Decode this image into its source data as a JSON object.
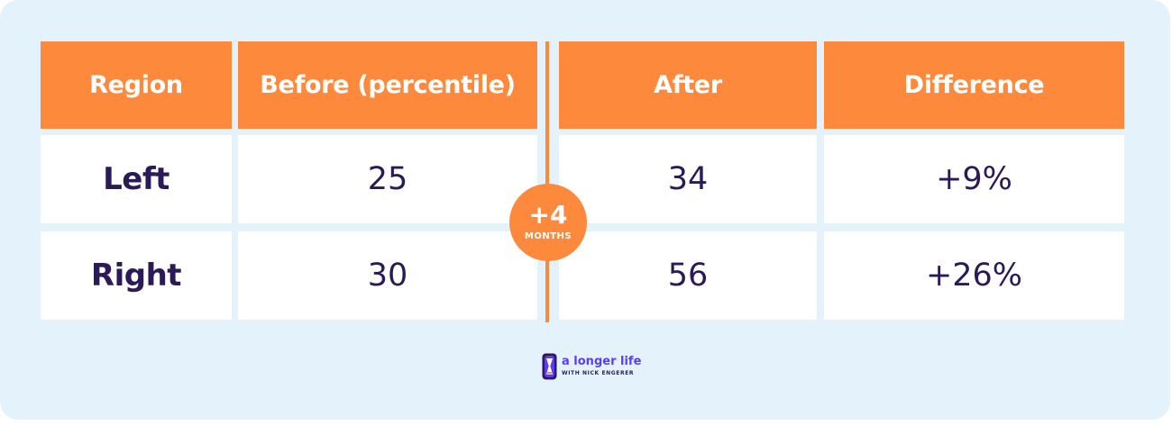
{
  "table": {
    "headers": [
      "Region",
      "Before (percentile)",
      "After",
      "Difference"
    ],
    "rows": [
      {
        "region": "Left",
        "before": "25",
        "after": "34",
        "difference": "+9%"
      },
      {
        "region": "Right",
        "before": "30",
        "after": "56",
        "difference": "+26%"
      }
    ]
  },
  "badge": {
    "value": "+4",
    "unit": "MONTHS"
  },
  "logo": {
    "title": "a longer life",
    "subtitle": "WITH NICK ENGERER"
  },
  "colors": {
    "background": "#e4f3fb",
    "header": "#fd8a3c",
    "text": "#2b1a57",
    "accent": "#5b3df5"
  }
}
